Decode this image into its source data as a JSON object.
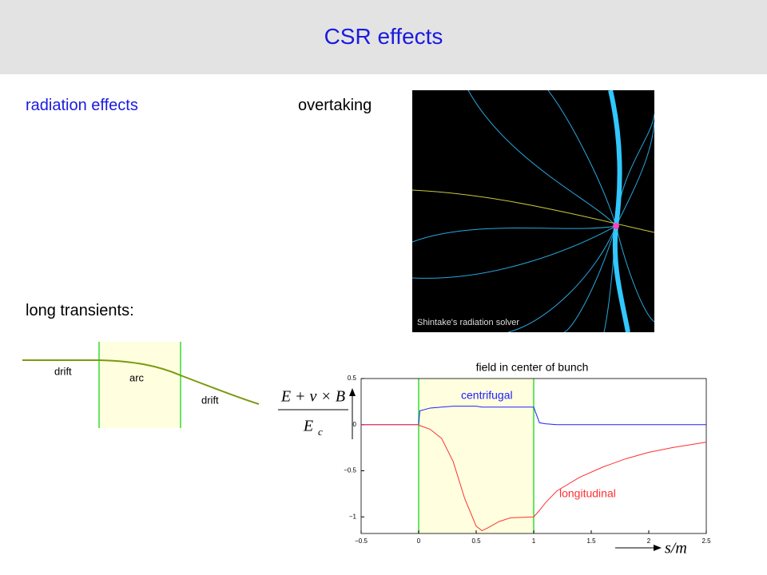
{
  "header": {
    "title": "CSR effects"
  },
  "labels": {
    "radiation": "radiation effects",
    "overtaking": "overtaking",
    "transients": "long transients:"
  },
  "image": {
    "caption": "Shintake's radiation solver"
  },
  "diagram": {
    "drift_left": "drift",
    "arc": "arc",
    "drift_right": "drift"
  },
  "chart_data": {
    "type": "line",
    "title": "field in center of bunch",
    "ylabel": {
      "numerator": "E + v × B",
      "denominator": "E",
      "subscript": "c"
    },
    "xlabel": "s/m",
    "x": [
      -0.5,
      0,
      0.01,
      0.1,
      0.2,
      0.3,
      0.4,
      0.5,
      0.55,
      0.6,
      0.7,
      0.8,
      1.0,
      1.05,
      1.1,
      1.2,
      1.4,
      1.6,
      1.8,
      2.0,
      2.2,
      2.5
    ],
    "series": [
      {
        "name": "centrifugal",
        "color": "#2020ff",
        "values": [
          0,
          0,
          0.15,
          0.18,
          0.19,
          0.2,
          0.2,
          0.2,
          0.19,
          0.19,
          0.19,
          0.19,
          0.19,
          0.02,
          0.01,
          0,
          0,
          0,
          0,
          0,
          0,
          0
        ]
      },
      {
        "name": "longitudinal",
        "color": "#ff3030",
        "values": [
          0,
          0,
          -0.01,
          -0.05,
          -0.15,
          -0.4,
          -0.8,
          -1.1,
          -1.15,
          -1.12,
          -1.05,
          -1.01,
          -1.0,
          -0.93,
          -0.85,
          -0.72,
          -0.57,
          -0.46,
          -0.37,
          -0.3,
          -0.25,
          -0.19
        ]
      }
    ],
    "highlight": {
      "x": [
        0,
        1
      ],
      "color": "#ffffe0",
      "edge_color": "#33dd33"
    },
    "xlim": [
      -0.5,
      2.5
    ],
    "xticks": [
      {
        "value": -0.5,
        "label": "−0.5"
      },
      0,
      0.5,
      1,
      1.5,
      2,
      2.5
    ],
    "ylim": [
      -1.18,
      0.5
    ],
    "yticks": [
      0.5,
      0,
      {
        "value": -0.5,
        "label": "−0.5"
      },
      {
        "value": -1,
        "label": "−1"
      }
    ]
  }
}
